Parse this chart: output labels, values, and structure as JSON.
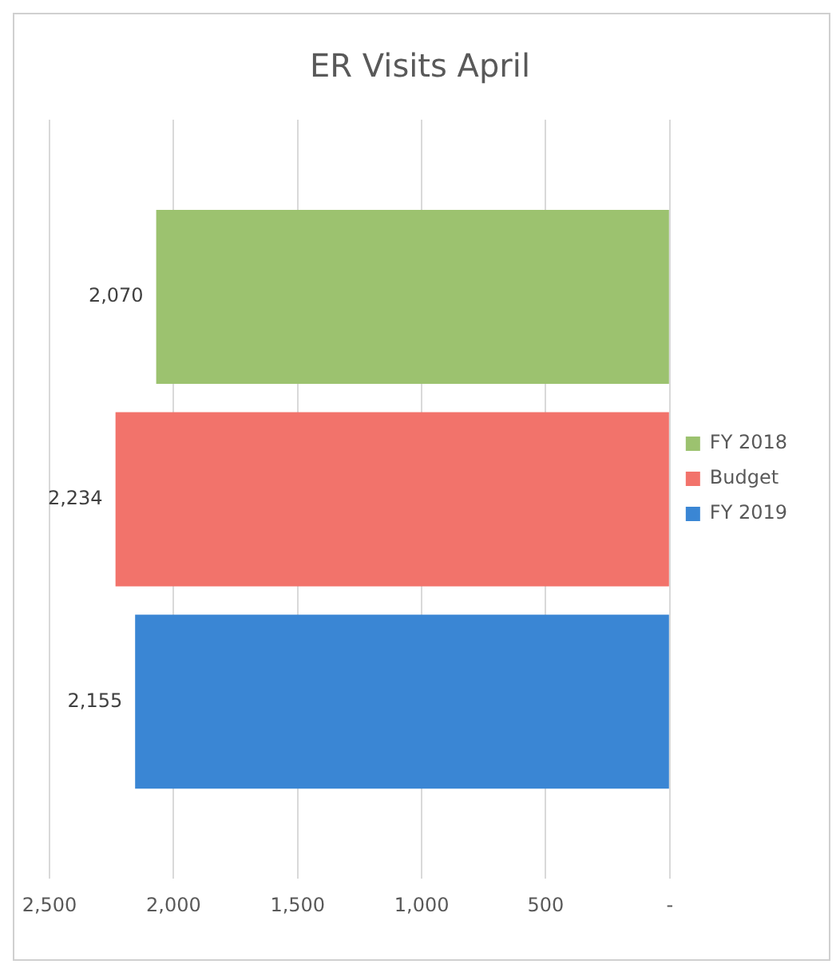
{
  "chart_data": {
    "type": "bar",
    "orientation": "horizontal",
    "title": "ER Visits April",
    "categories": [
      null
    ],
    "series": [
      {
        "name": "FY 2018",
        "color": "#9cc26f",
        "values": [
          2070
        ],
        "value_labels": [
          "2,070"
        ]
      },
      {
        "name": "Budget",
        "color": "#f2736b",
        "values": [
          2234
        ],
        "value_labels": [
          "2,234"
        ]
      },
      {
        "name": "FY 2019",
        "color": "#3a86d4",
        "values": [
          2155
        ],
        "value_labels": [
          "2,155"
        ]
      }
    ],
    "xlim": [
      2500,
      0
    ],
    "xticks": [
      {
        "value": 0,
        "label": "-"
      },
      {
        "value": 500,
        "label": "500"
      },
      {
        "value": 1000,
        "label": "1,000"
      },
      {
        "value": 1500,
        "label": "1,500"
      },
      {
        "value": 2000,
        "label": "2,000"
      },
      {
        "value": 2500,
        "label": "2,500"
      }
    ],
    "grid": "x",
    "legend": "right"
  }
}
